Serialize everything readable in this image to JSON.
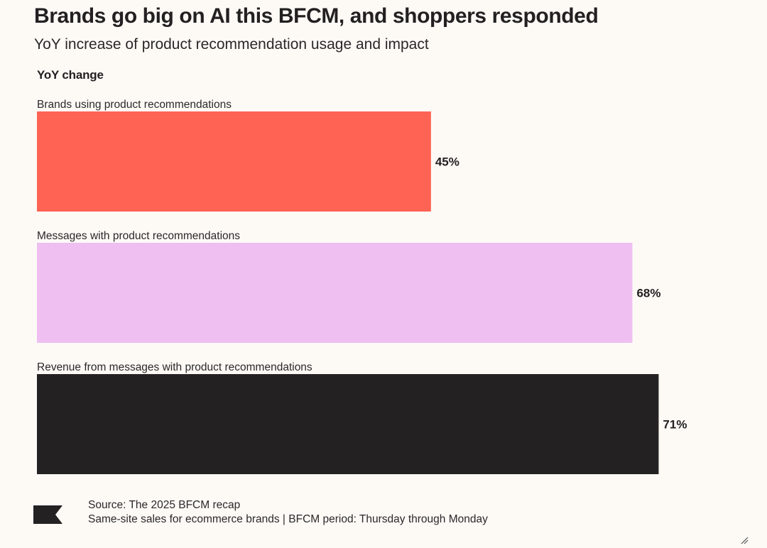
{
  "header": {
    "title": "Brands go big on AI this BFCM, and shoppers responded",
    "subtitle": "YoY increase of product recommendation usage and impact"
  },
  "footer": {
    "source": "Source: The 2025 BFCM recap",
    "note": "Same-site sales for ecommerce brands | BFCM period: Thursday through Monday",
    "logo_icon": "brand-flag-icon",
    "resize_icon": "resize-handle-icon"
  },
  "chart_data": {
    "type": "bar",
    "orientation": "horizontal",
    "title": "Brands go big on AI this BFCM, and shoppers responded",
    "subtitle": "YoY increase of product recommendation usage and impact",
    "xlabel": "",
    "ylabel": "YoY change",
    "categories": [
      "Brands using product recommendations",
      "Messages with product recommendations",
      "Revenue from messages with product recommendations"
    ],
    "values": [
      45,
      68,
      71
    ],
    "value_labels": [
      "45%",
      "68%",
      "71%"
    ],
    "unit": "%",
    "colors": [
      "#fe6354",
      "#eebff0",
      "#232122"
    ],
    "grid": false,
    "legend": "none"
  }
}
